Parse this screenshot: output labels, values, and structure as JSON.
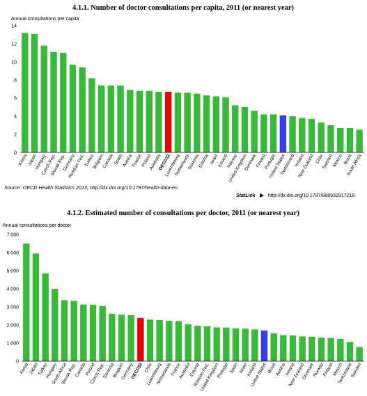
{
  "colors": {
    "bar": "#39b939",
    "highlight_oecd": "#e8000b",
    "highlight_us": "#3a3df0",
    "us_label": "#3a3df0"
  },
  "source_note": "Source:  OECD Health Statistics 2013, http://dx.doi.org/10.1787/health-data-en.",
  "statlink": {
    "brand": "StatLink",
    "url": "http://dx.doi.org/10.1787/888932917218"
  },
  "chart_data": [
    {
      "type": "bar",
      "title": "4.1.1.  Number of doctor consultations per capita, 2011 (or nearest year)",
      "ylabel": "Annual consultations per capita",
      "xlabel": "",
      "ylim": [
        0,
        14
      ],
      "yticks": [
        0,
        2,
        4,
        6,
        8,
        10,
        12,
        14
      ],
      "grid": false,
      "categories": [
        "Korea",
        "Japan",
        "Hungary",
        "Czech Rep.",
        "Slovak Rep.",
        "Germany",
        "Russian Fed.",
        "Turkey",
        "Belgium",
        "Canada",
        "Spain",
        "Austria",
        "France",
        "Poland",
        "Australia",
        "OECD32",
        "Luxembourg",
        "Netherlands",
        "Slovenia",
        "Estonia",
        "Israel",
        "Iceland",
        "Norway",
        "United Kingdom",
        "Denmark",
        "Finland",
        "Portugal",
        "United States",
        "Switzerland",
        "Ireland",
        "New Zealand",
        "Chile",
        "Sweden",
        "Mexico",
        "Brazil",
        "South Africa"
      ],
      "values": [
        13.2,
        13.1,
        11.8,
        11.1,
        11.0,
        9.7,
        9.4,
        8.2,
        7.4,
        7.4,
        7.4,
        6.9,
        6.8,
        6.8,
        6.7,
        6.7,
        6.6,
        6.6,
        6.5,
        6.3,
        6.2,
        6.1,
        5.2,
        5.0,
        4.6,
        4.2,
        4.2,
        4.1,
        4.0,
        3.8,
        3.7,
        3.3,
        3.0,
        2.7,
        2.7,
        2.5
      ],
      "highlight": {
        "OECD32": "highlight_oecd",
        "United States": "highlight_us"
      }
    },
    {
      "type": "bar",
      "title": "4.1.2.  Estimated number of consultations per doctor, 2011 (or nearest year)",
      "ylabel": "Annual consultations per doctor",
      "xlabel": "",
      "ylim": [
        0,
        7000
      ],
      "yticks": [
        0,
        1000,
        2000,
        3000,
        4000,
        5000,
        6000,
        7000
      ],
      "yticklabels": [
        "0",
        "1 000",
        "2 000",
        "3 000",
        "4 000",
        "5 000",
        "6 000",
        "7 000"
      ],
      "grid": false,
      "categories": [
        "Korea",
        "Japan",
        "Turkey",
        "Hungary",
        "South Africa",
        "Slovak Rep.",
        "Canada",
        "Poland",
        "Czech Rep.",
        "Slovenia",
        "Belgium",
        "Germany",
        "OECD32",
        "Chile",
        "Luxembourg",
        "Netherlands",
        "France",
        "Australia",
        "Estonia",
        "Russian Fed.",
        "United Kingdom",
        "Portugal",
        "Spain",
        "Israel",
        "Iceland",
        "United States",
        "Brazil",
        "Austria",
        "Ireland",
        "New Zealand",
        "Denmark",
        "Norway",
        "Finland",
        "Mexico",
        "Switzerland",
        "Sweden"
      ],
      "values": [
        6500,
        5950,
        4850,
        4000,
        3370,
        3340,
        3130,
        3120,
        3050,
        2620,
        2570,
        2550,
        2390,
        2300,
        2270,
        2230,
        2220,
        2040,
        1960,
        1930,
        1870,
        1860,
        1820,
        1800,
        1760,
        1700,
        1540,
        1440,
        1420,
        1370,
        1350,
        1300,
        1280,
        1230,
        1060,
        780
      ],
      "highlight": {
        "OECD32": "highlight_oecd",
        "United States": "highlight_us"
      }
    }
  ]
}
